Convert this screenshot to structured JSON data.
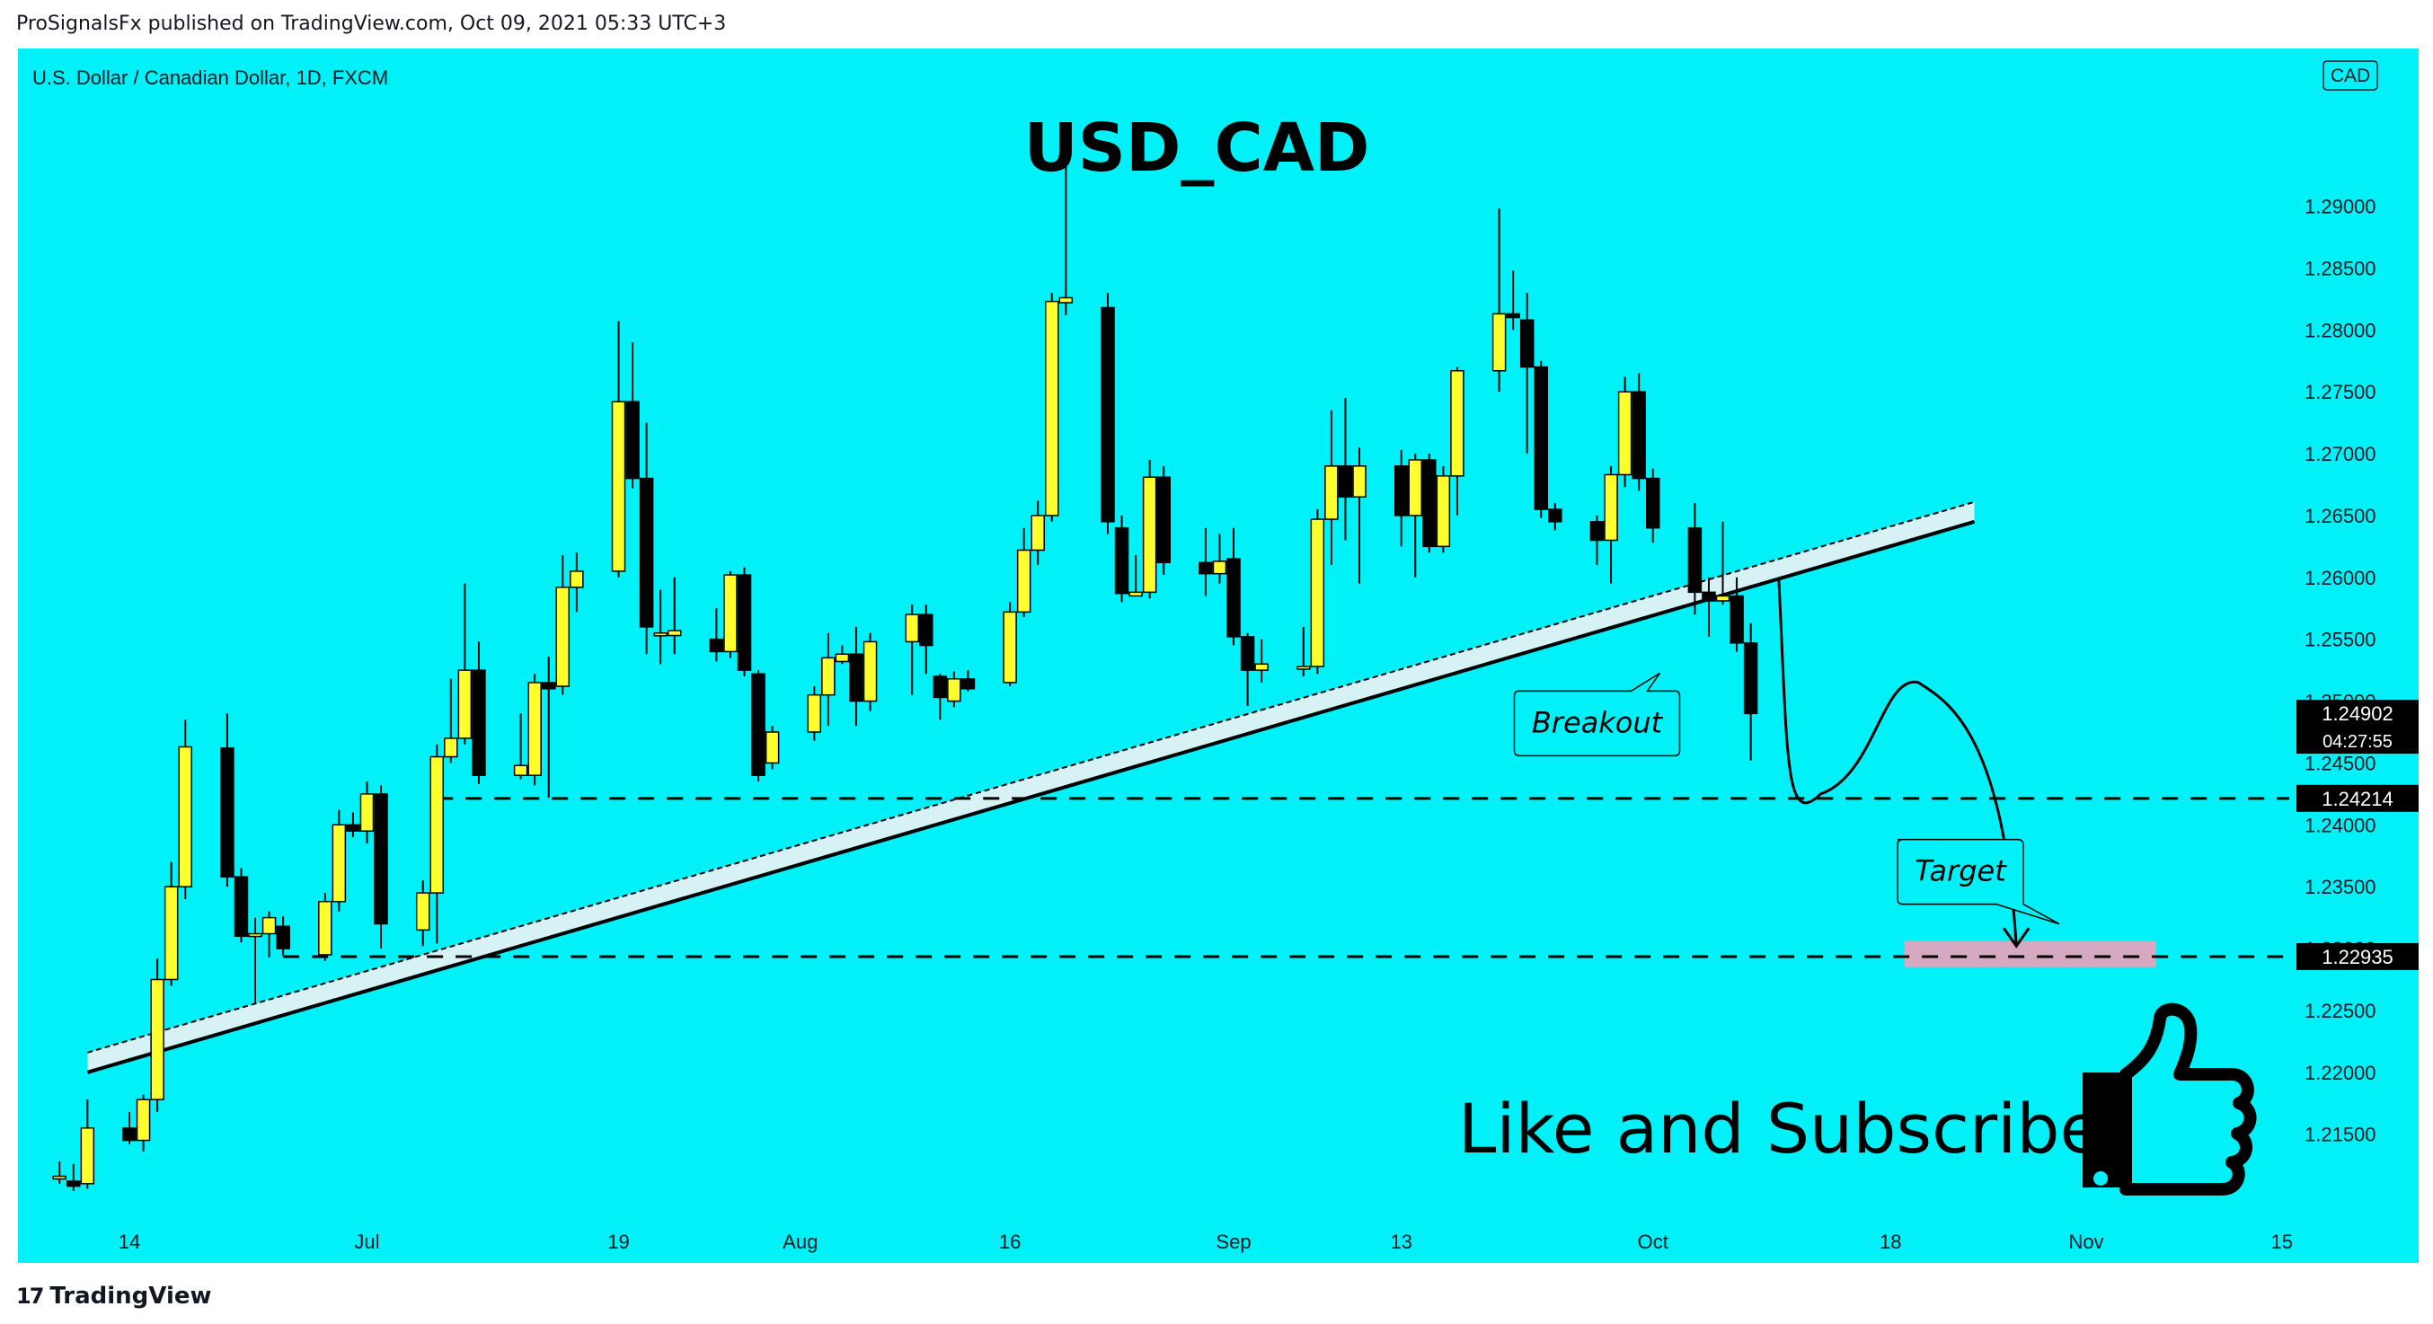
{
  "header": {
    "published": "ProSignalsFx published on TradingView.com, Oct 09, 2021 05:33 UTC+3"
  },
  "footer": {
    "brand": "TradingView",
    "brand_mark": "17"
  },
  "colors": {
    "background": "#00f2f8",
    "bull_candle": "#ffff2e",
    "bear_candle": "#000000",
    "trendline": "#000000",
    "trendline_band": "#d6f2f5",
    "target_zone": "#d7a8c2",
    "price_label_bg": "#000000"
  },
  "chart_data": {
    "type": "candlestick",
    "title": "USD_CAD",
    "symbol_info": "U.S. Dollar / Canadian Dollar, 1D, FXCM",
    "currency_badge": "CAD",
    "x_ticks": [
      {
        "date": "2021-06-14",
        "label": "14"
      },
      {
        "date": "2021-07-01",
        "label": "Jul"
      },
      {
        "date": "2021-07-19",
        "label": "19"
      },
      {
        "date": "2021-08-01",
        "label": "Aug"
      },
      {
        "date": "2021-08-16",
        "label": "16"
      },
      {
        "date": "2021-09-01",
        "label": "Sep"
      },
      {
        "date": "2021-09-13",
        "label": "13"
      },
      {
        "date": "2021-10-01",
        "label": "Oct"
      },
      {
        "date": "2021-10-18",
        "label": "18"
      },
      {
        "date": "2021-11-01",
        "label": "Nov"
      },
      {
        "date": "2021-11-15",
        "label": "15"
      }
    ],
    "y_ticks": [
      "1.29000",
      "1.28500",
      "1.28000",
      "1.27500",
      "1.27000",
      "1.26500",
      "1.26000",
      "1.25500",
      "1.25000",
      "1.24500",
      "1.24000",
      "1.23500",
      "1.23000",
      "1.22500",
      "1.22000",
      "1.21500"
    ],
    "ylim": [
      1.212,
      1.2965
    ],
    "candles": [
      {
        "date": "2021-06-09",
        "open": 1.2114,
        "high": 1.2128,
        "low": 1.211,
        "close": 1.2116
      },
      {
        "date": "2021-06-10",
        "open": 1.2112,
        "high": 1.2126,
        "low": 1.2104,
        "close": 1.2108
      },
      {
        "date": "2021-06-11",
        "open": 1.211,
        "high": 1.2178,
        "low": 1.2106,
        "close": 1.2155
      },
      {
        "date": "2021-06-14",
        "open": 1.2155,
        "high": 1.2168,
        "low": 1.2142,
        "close": 1.2145
      },
      {
        "date": "2021-06-15",
        "open": 1.2145,
        "high": 1.2182,
        "low": 1.2136,
        "close": 1.2178
      },
      {
        "date": "2021-06-16",
        "open": 1.2178,
        "high": 1.2292,
        "low": 1.2168,
        "close": 1.2275
      },
      {
        "date": "2021-06-17",
        "open": 1.2275,
        "high": 1.237,
        "low": 1.227,
        "close": 1.235
      },
      {
        "date": "2021-06-18",
        "open": 1.235,
        "high": 1.2485,
        "low": 1.234,
        "close": 1.2463
      },
      {
        "date": "2021-06-21",
        "open": 1.2462,
        "high": 1.249,
        "low": 1.235,
        "close": 1.2358
      },
      {
        "date": "2021-06-22",
        "open": 1.2358,
        "high": 1.2365,
        "low": 1.2305,
        "close": 1.231
      },
      {
        "date": "2021-06-23",
        "open": 1.231,
        "high": 1.2325,
        "low": 1.2255,
        "close": 1.2312
      },
      {
        "date": "2021-06-24",
        "open": 1.2312,
        "high": 1.233,
        "low": 1.2293,
        "close": 1.2325
      },
      {
        "date": "2021-06-25",
        "open": 1.2318,
        "high": 1.2326,
        "low": 1.2294,
        "close": 1.23
      },
      {
        "date": "2021-06-28",
        "open": 1.2295,
        "high": 1.2345,
        "low": 1.229,
        "close": 1.2338
      },
      {
        "date": "2021-06-29",
        "open": 1.2338,
        "high": 1.2412,
        "low": 1.233,
        "close": 1.24
      },
      {
        "date": "2021-06-30",
        "open": 1.24,
        "high": 1.241,
        "low": 1.239,
        "close": 1.2395
      },
      {
        "date": "2021-07-01",
        "open": 1.2395,
        "high": 1.2435,
        "low": 1.2385,
        "close": 1.2425
      },
      {
        "date": "2021-07-02",
        "open": 1.2425,
        "high": 1.2432,
        "low": 1.23,
        "close": 1.232
      },
      {
        "date": "2021-07-05",
        "open": 1.2315,
        "high": 1.2355,
        "low": 1.2302,
        "close": 1.2345
      },
      {
        "date": "2021-07-06",
        "open": 1.2345,
        "high": 1.2465,
        "low": 1.2304,
        "close": 1.2455
      },
      {
        "date": "2021-07-07",
        "open": 1.2455,
        "high": 1.2518,
        "low": 1.245,
        "close": 1.247
      },
      {
        "date": "2021-07-08",
        "open": 1.247,
        "high": 1.2595,
        "low": 1.2465,
        "close": 1.2525
      },
      {
        "date": "2021-07-09",
        "open": 1.2525,
        "high": 1.2548,
        "low": 1.2433,
        "close": 1.244
      },
      {
        "date": "2021-07-12",
        "open": 1.244,
        "high": 1.249,
        "low": 1.2437,
        "close": 1.2448
      },
      {
        "date": "2021-07-13",
        "open": 1.244,
        "high": 1.2522,
        "low": 1.2432,
        "close": 1.2515
      },
      {
        "date": "2021-07-14",
        "open": 1.2515,
        "high": 1.2536,
        "low": 1.2422,
        "close": 1.251
      },
      {
        "date": "2021-07-15",
        "open": 1.2512,
        "high": 1.2618,
        "low": 1.2505,
        "close": 1.2592
      },
      {
        "date": "2021-07-16",
        "open": 1.2592,
        "high": 1.262,
        "low": 1.2572,
        "close": 1.2605
      },
      {
        "date": "2021-07-19",
        "open": 1.2605,
        "high": 1.2807,
        "low": 1.26,
        "close": 1.2742
      },
      {
        "date": "2021-07-20",
        "open": 1.2742,
        "high": 1.279,
        "low": 1.2672,
        "close": 1.268
      },
      {
        "date": "2021-07-21",
        "open": 1.268,
        "high": 1.2725,
        "low": 1.2538,
        "close": 1.256
      },
      {
        "date": "2021-07-22",
        "open": 1.2553,
        "high": 1.259,
        "low": 1.253,
        "close": 1.2555
      },
      {
        "date": "2021-07-23",
        "open": 1.2553,
        "high": 1.26,
        "low": 1.2538,
        "close": 1.2557
      },
      {
        "date": "2021-07-26",
        "open": 1.255,
        "high": 1.2575,
        "low": 1.2532,
        "close": 1.254
      },
      {
        "date": "2021-07-27",
        "open": 1.254,
        "high": 1.2605,
        "low": 1.2535,
        "close": 1.2602
      },
      {
        "date": "2021-07-28",
        "open": 1.2602,
        "high": 1.2608,
        "low": 1.252,
        "close": 1.2525
      },
      {
        "date": "2021-07-29",
        "open": 1.2522,
        "high": 1.2525,
        "low": 1.2435,
        "close": 1.244
      },
      {
        "date": "2021-07-30",
        "open": 1.245,
        "high": 1.248,
        "low": 1.2445,
        "close": 1.2475
      },
      {
        "date": "2021-08-02",
        "open": 1.2475,
        "high": 1.2512,
        "low": 1.2468,
        "close": 1.2505
      },
      {
        "date": "2021-08-03",
        "open": 1.2505,
        "high": 1.2555,
        "low": 1.248,
        "close": 1.2535
      },
      {
        "date": "2021-08-04",
        "open": 1.2532,
        "high": 1.2545,
        "low": 1.253,
        "close": 1.2538
      },
      {
        "date": "2021-08-05",
        "open": 1.2538,
        "high": 1.256,
        "low": 1.248,
        "close": 1.25
      },
      {
        "date": "2021-08-06",
        "open": 1.25,
        "high": 1.2555,
        "low": 1.2492,
        "close": 1.2548
      },
      {
        "date": "2021-08-09",
        "open": 1.2548,
        "high": 1.2578,
        "low": 1.2505,
        "close": 1.257
      },
      {
        "date": "2021-08-10",
        "open": 1.257,
        "high": 1.2578,
        "low": 1.2522,
        "close": 1.2545
      },
      {
        "date": "2021-08-11",
        "open": 1.252,
        "high": 1.2522,
        "low": 1.2485,
        "close": 1.2503
      },
      {
        "date": "2021-08-12",
        "open": 1.25,
        "high": 1.2524,
        "low": 1.2495,
        "close": 1.2518
      },
      {
        "date": "2021-08-13",
        "open": 1.2518,
        "high": 1.2525,
        "low": 1.2508,
        "close": 1.251
      },
      {
        "date": "2021-08-16",
        "open": 1.2515,
        "high": 1.258,
        "low": 1.2512,
        "close": 1.2572
      },
      {
        "date": "2021-08-17",
        "open": 1.2572,
        "high": 1.264,
        "low": 1.2568,
        "close": 1.2622
      },
      {
        "date": "2021-08-18",
        "open": 1.2622,
        "high": 1.2662,
        "low": 1.261,
        "close": 1.265
      },
      {
        "date": "2021-08-19",
        "open": 1.265,
        "high": 1.283,
        "low": 1.2645,
        "close": 1.2823
      },
      {
        "date": "2021-08-20",
        "open": 1.2822,
        "high": 1.295,
        "low": 1.2812,
        "close": 1.2826
      },
      {
        "date": "2021-08-23",
        "open": 1.2818,
        "high": 1.283,
        "low": 1.2635,
        "close": 1.2645
      },
      {
        "date": "2021-08-24",
        "open": 1.264,
        "high": 1.265,
        "low": 1.258,
        "close": 1.2587
      },
      {
        "date": "2021-08-25",
        "open": 1.2585,
        "high": 1.2618,
        "low": 1.2585,
        "close": 1.2588
      },
      {
        "date": "2021-08-26",
        "open": 1.2588,
        "high": 1.2695,
        "low": 1.2583,
        "close": 1.2681
      },
      {
        "date": "2021-08-27",
        "open": 1.2681,
        "high": 1.269,
        "low": 1.2602,
        "close": 1.2612
      },
      {
        "date": "2021-08-30",
        "open": 1.2612,
        "high": 1.264,
        "low": 1.2585,
        "close": 1.2603
      },
      {
        "date": "2021-08-31",
        "open": 1.2603,
        "high": 1.2635,
        "low": 1.2595,
        "close": 1.2613
      },
      {
        "date": "2021-09-01",
        "open": 1.2615,
        "high": 1.264,
        "low": 1.2545,
        "close": 1.2552
      },
      {
        "date": "2021-09-02",
        "open": 1.2552,
        "high": 1.2555,
        "low": 1.2496,
        "close": 1.2525
      },
      {
        "date": "2021-09-03",
        "open": 1.2525,
        "high": 1.255,
        "low": 1.2515,
        "close": 1.253
      },
      {
        "date": "2021-09-06",
        "open": 1.2527,
        "high": 1.256,
        "low": 1.252,
        "close": 1.2528
      },
      {
        "date": "2021-09-07",
        "open": 1.2528,
        "high": 1.2655,
        "low": 1.2522,
        "close": 1.2647
      },
      {
        "date": "2021-09-08",
        "open": 1.2647,
        "high": 1.2735,
        "low": 1.261,
        "close": 1.269
      },
      {
        "date": "2021-09-09",
        "open": 1.269,
        "high": 1.2745,
        "low": 1.263,
        "close": 1.2665
      },
      {
        "date": "2021-09-10",
        "open": 1.2665,
        "high": 1.2705,
        "low": 1.2595,
        "close": 1.269
      },
      {
        "date": "2021-09-13",
        "open": 1.269,
        "high": 1.2703,
        "low": 1.2625,
        "close": 1.265
      },
      {
        "date": "2021-09-14",
        "open": 1.265,
        "high": 1.27,
        "low": 1.26,
        "close": 1.2695
      },
      {
        "date": "2021-09-15",
        "open": 1.2695,
        "high": 1.27,
        "low": 1.262,
        "close": 1.2625
      },
      {
        "date": "2021-09-16",
        "open": 1.2625,
        "high": 1.269,
        "low": 1.262,
        "close": 1.2682
      },
      {
        "date": "2021-09-17",
        "open": 1.2682,
        "high": 1.277,
        "low": 1.265,
        "close": 1.2767
      },
      {
        "date": "2021-09-20",
        "open": 1.2767,
        "high": 1.2898,
        "low": 1.275,
        "close": 1.2813
      },
      {
        "date": "2021-09-21",
        "open": 1.2813,
        "high": 1.2848,
        "low": 1.28,
        "close": 1.281
      },
      {
        "date": "2021-09-22",
        "open": 1.2808,
        "high": 1.283,
        "low": 1.27,
        "close": 1.277
      },
      {
        "date": "2021-09-23",
        "open": 1.277,
        "high": 1.2775,
        "low": 1.2648,
        "close": 1.2655
      },
      {
        "date": "2021-09-24",
        "open": 1.2655,
        "high": 1.266,
        "low": 1.2638,
        "close": 1.2645
      },
      {
        "date": "2021-09-27",
        "open": 1.2645,
        "high": 1.265,
        "low": 1.261,
        "close": 1.263
      },
      {
        "date": "2021-09-28",
        "open": 1.263,
        "high": 1.269,
        "low": 1.2595,
        "close": 1.2683
      },
      {
        "date": "2021-09-29",
        "open": 1.2683,
        "high": 1.2762,
        "low": 1.2673,
        "close": 1.275
      },
      {
        "date": "2021-09-30",
        "open": 1.275,
        "high": 1.2765,
        "low": 1.267,
        "close": 1.268
      },
      {
        "date": "2021-10-01",
        "open": 1.268,
        "high": 1.2688,
        "low": 1.2628,
        "close": 1.264
      },
      {
        "date": "2021-10-04",
        "open": 1.264,
        "high": 1.266,
        "low": 1.257,
        "close": 1.2588
      },
      {
        "date": "2021-10-05",
        "open": 1.2588,
        "high": 1.26,
        "low": 1.2552,
        "close": 1.2581
      },
      {
        "date": "2021-10-06",
        "open": 1.2581,
        "high": 1.2645,
        "low": 1.2578,
        "close": 1.2585
      },
      {
        "date": "2021-10-07",
        "open": 1.2585,
        "high": 1.26,
        "low": 1.254,
        "close": 1.2547
      },
      {
        "date": "2021-10-08",
        "open": 1.2547,
        "high": 1.2563,
        "low": 1.2452,
        "close": 1.249
      }
    ],
    "horizontal_levels": [
      {
        "value": 1.24214,
        "label": "1.24214"
      },
      {
        "value": 1.22935,
        "label": "1.22935"
      }
    ],
    "last_price": {
      "value": 1.24902,
      "label": "1.24902",
      "countdown": "04:27:55"
    },
    "trendline": {
      "start": {
        "date": "2021-06-11",
        "price": 1.22
      },
      "end": {
        "date": "2021-10-24",
        "price": 1.2645
      }
    },
    "target_zone": {
      "from_date": "2021-10-19",
      "to_date": "2021-11-06",
      "low": 1.2285,
      "high": 1.2306
    },
    "projection_path": [
      {
        "date": "2021-10-10",
        "price": 1.26
      },
      {
        "date": "2021-10-13",
        "price": 1.2425
      },
      {
        "date": "2021-10-20",
        "price": 1.2515
      },
      {
        "date": "2021-10-25",
        "price": 1.2478
      },
      {
        "date": "2021-10-27",
        "price": 1.2302
      }
    ],
    "annotations": [
      {
        "text": "Breakout",
        "date": "2021-09-27",
        "price": 1.2482
      },
      {
        "text": "Target",
        "date": "2021-10-23",
        "price": 1.2362
      }
    ],
    "promo_text": "Like and Subscribe"
  }
}
